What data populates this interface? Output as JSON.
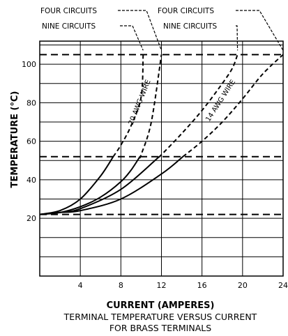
{
  "chart_data": {
    "type": "line",
    "xlabel": "CURRENT (AMPERES)",
    "ylabel": "TEMPERATURE (°C)",
    "caption_lines": [
      "TERMINAL TEMPERATURE VERSUS CURRENT",
      "FOR BRASS TERMINALS"
    ],
    "xlim": [
      0,
      24
    ],
    "ylim": [
      -10,
      112
    ],
    "x_ticks": [
      4,
      8,
      12,
      16,
      20,
      24
    ],
    "y_ticks": [
      20,
      40,
      60,
      80,
      100
    ],
    "x_grid": [
      0,
      4,
      8,
      12,
      16,
      20,
      24
    ],
    "y_grid": [
      0,
      10,
      20,
      30,
      40,
      50,
      60,
      70,
      80,
      90,
      100,
      110
    ],
    "grid": true,
    "reference_lines": [
      {
        "y": 105,
        "style": "dashed"
      },
      {
        "y": 52,
        "style": "dashed"
      },
      {
        "y": 22,
        "style": "dashed"
      }
    ],
    "series": [
      {
        "name": "FOUR CIRCUITS",
        "wire": "20 AWG WIRE",
        "x": [
          0,
          2,
          4,
          6,
          8,
          9,
          10,
          11,
          12
        ],
        "y": [
          22,
          23,
          26,
          31,
          39,
          45,
          53,
          70,
          105
        ]
      },
      {
        "name": "NINE CIRCUITS",
        "wire": "20 AWG WIRE",
        "x": [
          0,
          2,
          4,
          6,
          8,
          9,
          10,
          10.2
        ],
        "y": [
          22,
          24,
          30,
          42,
          58,
          68,
          83,
          105
        ]
      },
      {
        "name": "FOUR CIRCUITS",
        "wire": "14 AWG WIRE",
        "x": [
          0,
          2,
          4,
          8,
          12,
          16,
          18,
          20,
          22,
          24
        ],
        "y": [
          22,
          23,
          24,
          30,
          43,
          60,
          70,
          82,
          95,
          105
        ]
      },
      {
        "name": "NINE CIRCUITS",
        "wire": "14 AWG WIRE",
        "x": [
          0,
          2,
          4,
          8,
          12,
          14,
          16,
          18,
          19,
          19.5
        ],
        "y": [
          22,
          23,
          25,
          35,
          53,
          64,
          76,
          90,
          98,
          105
        ]
      }
    ],
    "callouts": [
      "FOUR CIRCUITS",
      "NINE CIRCUITS",
      "FOUR CIRCUITS",
      "NINE CIRCUITS"
    ],
    "curve_labels": [
      "20 AWG WIRE",
      "14 AWG WIRE"
    ]
  }
}
